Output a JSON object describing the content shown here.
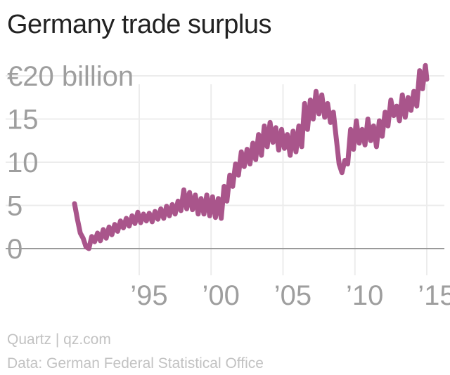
{
  "title": "Germany trade surplus",
  "footer": {
    "source": "Quartz | qz.com",
    "data_credit": "Data: German Federal Statistical Office"
  },
  "colors": {
    "line": "#a9558b",
    "grid": "#ececec",
    "baseline": "#9a9a9a",
    "tick_text": "#9e9e9e"
  },
  "chart_data": {
    "type": "line",
    "title": "Germany trade surplus",
    "ylim": [
      0,
      20
    ],
    "xlim": [
      1988.5,
      2015.5
    ],
    "y_ticks": [
      {
        "value": 20,
        "label": "€20 billion"
      },
      {
        "value": 15,
        "label": "15"
      },
      {
        "value": 10,
        "label": "10"
      },
      {
        "value": 5,
        "label": "5"
      },
      {
        "value": 0,
        "label": "0"
      }
    ],
    "x_ticks": [
      {
        "value": 1995,
        "label": "’95"
      },
      {
        "value": 2000,
        "label": "’00"
      },
      {
        "value": 2005,
        "label": "’05"
      },
      {
        "value": 2010,
        "label": "’10"
      },
      {
        "value": 2015,
        "label": "’15"
      }
    ],
    "grid": true,
    "series": [
      {
        "points": [
          [
            1990.5,
            5.2
          ],
          [
            1990.7,
            3.4
          ],
          [
            1990.9,
            1.8
          ],
          [
            1991.1,
            1.2
          ],
          [
            1991.3,
            0.2
          ],
          [
            1991.5,
            0.0
          ],
          [
            1991.7,
            1.4
          ],
          [
            1991.9,
            0.8
          ],
          [
            1992.1,
            1.8
          ],
          [
            1992.3,
            0.9
          ],
          [
            1992.5,
            2.2
          ],
          [
            1992.7,
            1.2
          ],
          [
            1992.9,
            2.5
          ],
          [
            1993.1,
            1.6
          ],
          [
            1993.3,
            2.8
          ],
          [
            1993.5,
            2.0
          ],
          [
            1993.7,
            3.2
          ],
          [
            1993.9,
            2.4
          ],
          [
            1994.1,
            3.5
          ],
          [
            1994.3,
            2.6
          ],
          [
            1994.5,
            3.8
          ],
          [
            1994.7,
            2.9
          ],
          [
            1994.9,
            4.2
          ],
          [
            1995.1,
            3.0
          ],
          [
            1995.3,
            4.0
          ],
          [
            1995.5,
            3.2
          ],
          [
            1995.7,
            4.1
          ],
          [
            1995.9,
            3.1
          ],
          [
            1996.1,
            4.3
          ],
          [
            1996.3,
            3.4
          ],
          [
            1996.5,
            4.6
          ],
          [
            1996.7,
            3.5
          ],
          [
            1996.9,
            4.9
          ],
          [
            1997.1,
            3.8
          ],
          [
            1997.3,
            5.1
          ],
          [
            1997.5,
            4.0
          ],
          [
            1997.7,
            5.5
          ],
          [
            1997.9,
            4.4
          ],
          [
            1998.1,
            6.8
          ],
          [
            1998.3,
            4.6
          ],
          [
            1998.5,
            6.5
          ],
          [
            1998.7,
            4.5
          ],
          [
            1998.9,
            6.2
          ],
          [
            1999.1,
            4.0
          ],
          [
            1999.3,
            5.8
          ],
          [
            1999.5,
            4.0
          ],
          [
            1999.7,
            6.2
          ],
          [
            1999.9,
            3.8
          ],
          [
            2000.1,
            6.0
          ],
          [
            2000.3,
            3.6
          ],
          [
            2000.5,
            5.8
          ],
          [
            2000.7,
            3.5
          ],
          [
            2000.9,
            7.2
          ],
          [
            2001.1,
            5.5
          ],
          [
            2001.3,
            8.5
          ],
          [
            2001.5,
            7.2
          ],
          [
            2001.7,
            9.8
          ],
          [
            2001.9,
            8.5
          ],
          [
            2002.1,
            11.2
          ],
          [
            2002.3,
            9.5
          ],
          [
            2002.5,
            11.5
          ],
          [
            2002.7,
            9.8
          ],
          [
            2002.9,
            12.2
          ],
          [
            2003.1,
            10.3
          ],
          [
            2003.3,
            13.2
          ],
          [
            2003.5,
            10.8
          ],
          [
            2003.7,
            14.2
          ],
          [
            2003.9,
            11.8
          ],
          [
            2004.1,
            14.6
          ],
          [
            2004.3,
            12.3
          ],
          [
            2004.5,
            14.0
          ],
          [
            2004.7,
            11.4
          ],
          [
            2004.9,
            13.8
          ],
          [
            2005.1,
            11.6
          ],
          [
            2005.3,
            13.2
          ],
          [
            2005.5,
            10.8
          ],
          [
            2005.7,
            13.6
          ],
          [
            2005.9,
            11.2
          ],
          [
            2006.1,
            14.2
          ],
          [
            2006.3,
            11.8
          ],
          [
            2006.5,
            16.8
          ],
          [
            2006.7,
            13.8
          ],
          [
            2006.9,
            17.2
          ],
          [
            2007.1,
            15.0
          ],
          [
            2007.3,
            18.2
          ],
          [
            2007.5,
            15.6
          ],
          [
            2007.7,
            17.8
          ],
          [
            2007.9,
            15.2
          ],
          [
            2008.1,
            16.8
          ],
          [
            2008.3,
            14.6
          ],
          [
            2008.5,
            15.8
          ],
          [
            2008.7,
            12.8
          ],
          [
            2008.9,
            9.8
          ],
          [
            2009.1,
            8.8
          ],
          [
            2009.3,
            10.2
          ],
          [
            2009.5,
            9.8
          ],
          [
            2009.7,
            13.8
          ],
          [
            2009.9,
            11.5
          ],
          [
            2010.1,
            14.8
          ],
          [
            2010.3,
            12.2
          ],
          [
            2010.5,
            13.8
          ],
          [
            2010.7,
            12.0
          ],
          [
            2010.9,
            15.0
          ],
          [
            2011.1,
            12.5
          ],
          [
            2011.3,
            14.2
          ],
          [
            2011.5,
            11.8
          ],
          [
            2011.7,
            14.8
          ],
          [
            2011.9,
            13.0
          ],
          [
            2012.1,
            15.8
          ],
          [
            2012.3,
            14.2
          ],
          [
            2012.5,
            17.2
          ],
          [
            2012.7,
            15.4
          ],
          [
            2012.9,
            16.5
          ],
          [
            2013.1,
            14.8
          ],
          [
            2013.3,
            17.8
          ],
          [
            2013.5,
            15.2
          ],
          [
            2013.7,
            17.5
          ],
          [
            2013.9,
            16.0
          ],
          [
            2014.1,
            18.2
          ],
          [
            2014.3,
            16.5
          ],
          [
            2014.5,
            20.6
          ],
          [
            2014.7,
            18.5
          ],
          [
            2014.9,
            21.2
          ],
          [
            2015.0,
            19.6
          ]
        ]
      }
    ]
  }
}
